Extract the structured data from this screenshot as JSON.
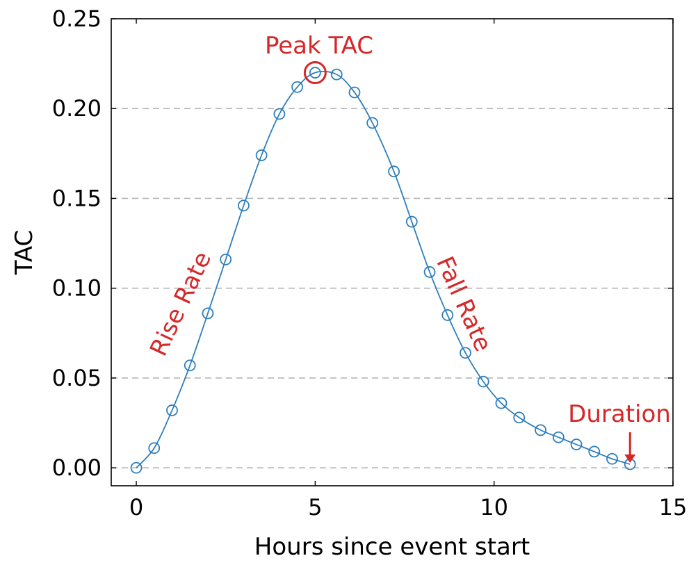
{
  "chart_data": {
    "type": "line",
    "title": "",
    "xlabel": "Hours since event start",
    "ylabel": "TAC",
    "xlim": [
      -0.7,
      15
    ],
    "ylim": [
      -0.01,
      0.25
    ],
    "x_ticks": [
      0,
      5,
      10,
      15
    ],
    "x_tick_labels": [
      "0",
      "5",
      "10",
      "15"
    ],
    "y_ticks": [
      0,
      0.05,
      0.1,
      0.15,
      0.2,
      0.25
    ],
    "y_tick_labels": [
      "0.00",
      "0.05",
      "0.10",
      "0.15",
      "0.20",
      "0.25"
    ],
    "grid": "horizontal dashed",
    "series": [
      {
        "color": "#2e7ebc",
        "marker": "open-circle",
        "x": [
          0,
          0.5,
          1.0,
          1.5,
          2.0,
          2.5,
          3.0,
          3.5,
          4.0,
          4.5,
          5.0,
          5.6,
          6.1,
          6.6,
          7.2,
          7.7,
          8.2,
          8.7,
          9.2,
          9.7,
          10.2,
          10.7,
          11.3,
          11.8,
          12.3,
          12.8,
          13.3,
          13.8
        ],
        "y": [
          0.0,
          0.011,
          0.032,
          0.057,
          0.086,
          0.116,
          0.146,
          0.174,
          0.197,
          0.212,
          0.22,
          0.219,
          0.209,
          0.192,
          0.165,
          0.137,
          0.109,
          0.085,
          0.064,
          0.048,
          0.036,
          0.028,
          0.021,
          0.017,
          0.013,
          0.009,
          0.005,
          0.002
        ]
      }
    ],
    "annotations": {
      "color": "#d62728",
      "peak": {
        "text": "Peak TAC",
        "x": 5.0,
        "y": 0.22
      },
      "rise": {
        "text": "Rise Rate"
      },
      "fall": {
        "text": "Fall Rate"
      },
      "duration": {
        "text": "Duration",
        "x": 13.8,
        "y": 0.002
      }
    }
  }
}
